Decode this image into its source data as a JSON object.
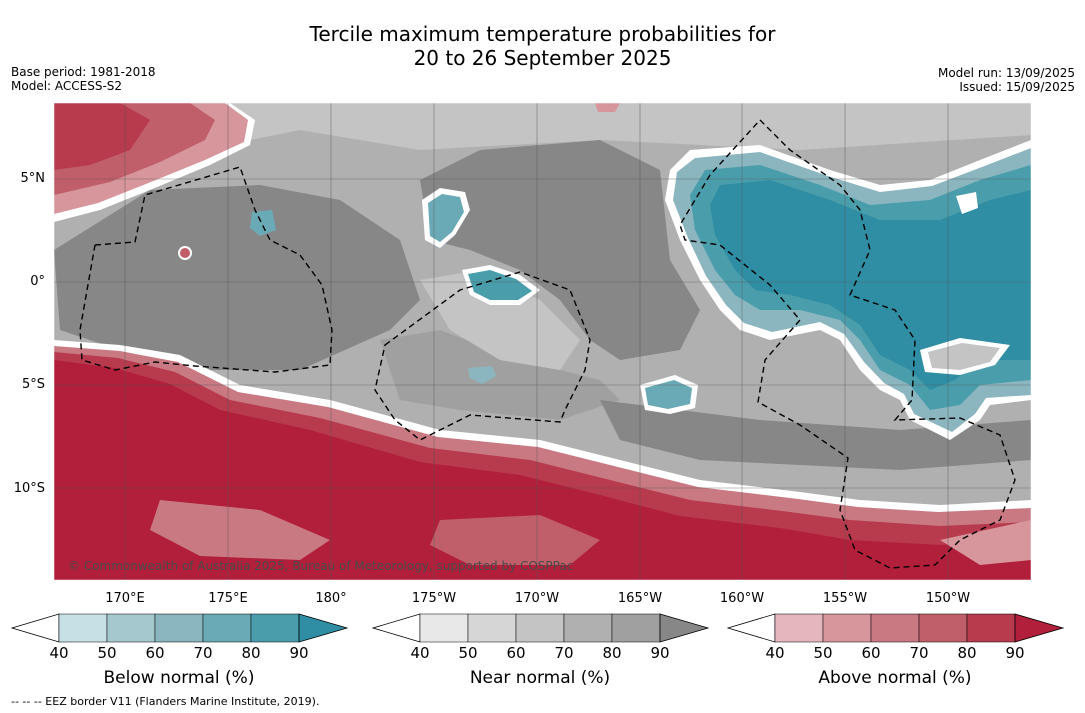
{
  "title": {
    "line1": "Tercile maximum temperature probabilities for",
    "line2": "20 to 26 September 2025"
  },
  "meta": {
    "base_period": "Base period: 1981-2018",
    "model": "Model: ACCESS-S2",
    "model_run": "Model run: 13/09/2025",
    "issued": "Issued: 15/09/2025"
  },
  "map": {
    "lat_labels": [
      "5°N",
      "0°",
      "5°S",
      "10°S"
    ],
    "lon_labels": [
      "170°E",
      "175°E",
      "180°",
      "175°W",
      "170°W",
      "165°W",
      "160°W",
      "155°W",
      "150°W"
    ],
    "copyright": "© Commonwealth of Australia 2025, Bureau of Meteorology, supported by COSPPac",
    "colors": {
      "below": [
        "#c6e0e6",
        "#a5c8ce",
        "#8bb6c0",
        "#6aaab6",
        "#4a9eac",
        "#2f8ea3"
      ],
      "near": [
        "#e8e8e8",
        "#d6d6d6",
        "#c4c4c4",
        "#b0b0b0",
        "#a0a0a0",
        "#878787"
      ],
      "above": [
        "#e3b7bd",
        "#d7959c",
        "#c97982",
        "#c05e69",
        "#b73a4d",
        "#b11f3a"
      ]
    }
  },
  "colorbars": [
    {
      "title": "Below normal (%)",
      "ticks": [
        "40",
        "50",
        "60",
        "70",
        "80",
        "90"
      ]
    },
    {
      "title": "Near normal (%)",
      "ticks": [
        "40",
        "50",
        "60",
        "70",
        "80",
        "90"
      ]
    },
    {
      "title": "Above normal (%)",
      "ticks": [
        "40",
        "50",
        "60",
        "70",
        "80",
        "90"
      ]
    }
  ],
  "footer": "--  --  -- EEZ border V11 (Flanders Marine Institute, 2019)."
}
